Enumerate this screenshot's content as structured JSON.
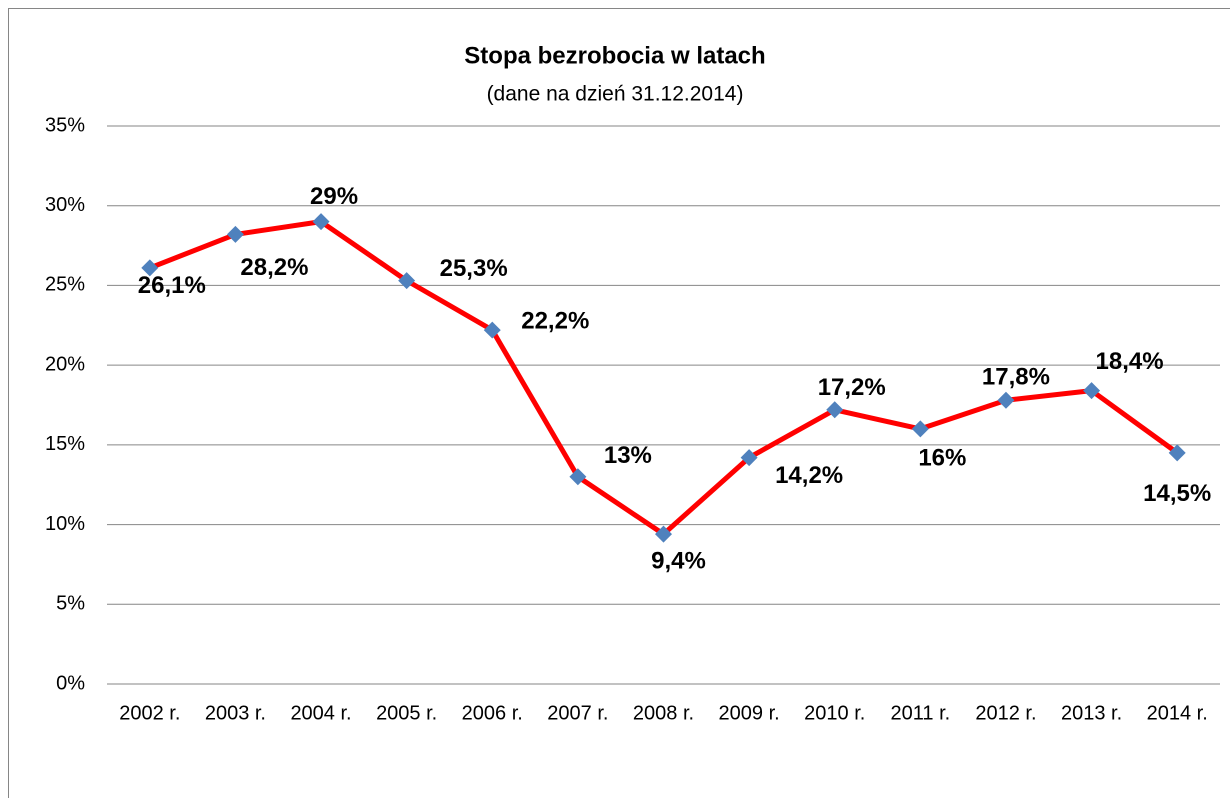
{
  "chart_data": {
    "type": "line",
    "title": "Stopa bezrobocia w latach",
    "subtitle": "(dane na dzień 31.12.2014)",
    "categories": [
      "2002 r.",
      "2003 r.",
      "2004 r.",
      "2005 r.",
      "2006 r.",
      "2007 r.",
      "2008 r.",
      "2009 r.",
      "2010 r.",
      "2011 r.",
      "2012 r.",
      "2013 r.",
      "2014 r."
    ],
    "series": [
      {
        "color": "#ff0000",
        "marker_color": "#4f81bd",
        "values": [
          26.1,
          28.2,
          29,
          25.3,
          22.2,
          13,
          9.4,
          14.2,
          17.2,
          16,
          17.8,
          18.4,
          14.5
        ],
        "value_labels": [
          "26,1%",
          "28,2%",
          "29%",
          "25,3%",
          "22,2%",
          "13%",
          "9,4%",
          "14,2%",
          "17,2%",
          "16%",
          "17,8%",
          "18,4%",
          "14,5%"
        ]
      }
    ],
    "ylim": [
      0,
      35
    ],
    "yticks": [
      {
        "value": 0,
        "label": "0%"
      },
      {
        "value": 5,
        "label": "5%"
      },
      {
        "value": 10,
        "label": "10%"
      },
      {
        "value": 15,
        "label": "15%"
      },
      {
        "value": 20,
        "label": "20%"
      },
      {
        "value": 25,
        "label": "25%"
      },
      {
        "value": 30,
        "label": "30%"
      },
      {
        "value": 35,
        "label": "35%"
      }
    ],
    "grid": true
  }
}
